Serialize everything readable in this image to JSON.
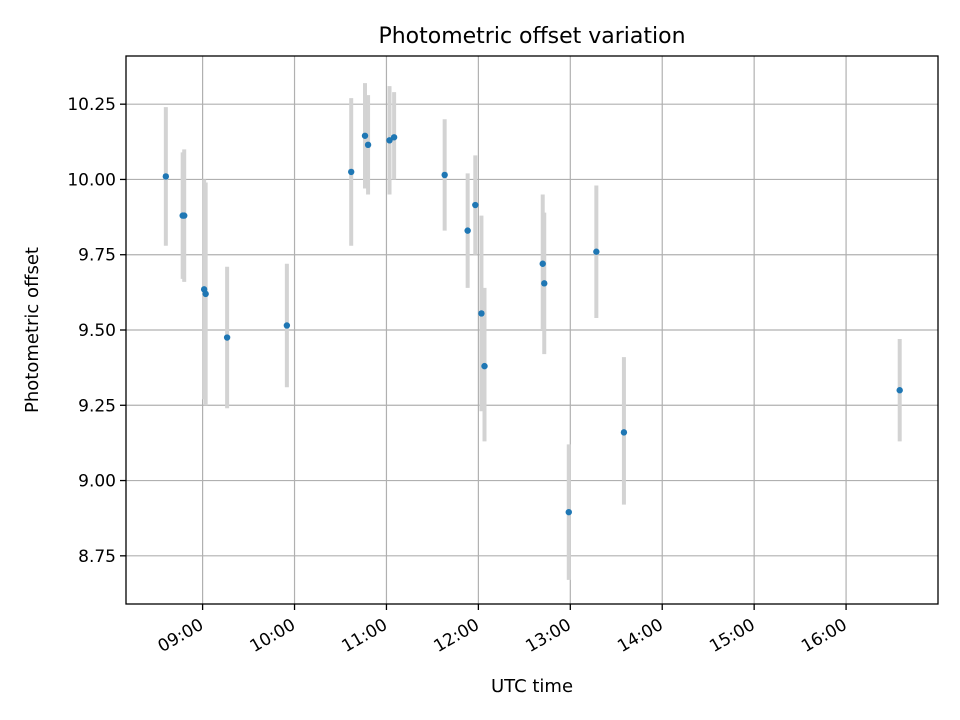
{
  "chart_data": {
    "type": "scatter",
    "title": "Photometric offset variation",
    "xlabel": "UTC time",
    "ylabel": "Photometric offset",
    "xlim": [
      "08:10",
      "17:00"
    ],
    "ylim": [
      8.59,
      10.41
    ],
    "x_ticks": [
      "09:00",
      "10:00",
      "11:00",
      "12:00",
      "13:00",
      "14:00",
      "15:00",
      "16:00"
    ],
    "y_ticks": [
      8.75,
      9.0,
      9.25,
      9.5,
      9.75,
      10.0,
      10.25
    ],
    "y_tick_labels": [
      "8.75",
      "9.00",
      "9.25",
      "9.50",
      "9.75",
      "10.00",
      "10.25"
    ],
    "grid": true,
    "marker_color": "#1f77b4",
    "errorbar_color": "#d3d3d3",
    "points": [
      {
        "x": "08:36",
        "y": 10.01,
        "err_low": 9.78,
        "err_high": 10.24
      },
      {
        "x": "08:47",
        "y": 9.88,
        "err_low": 9.67,
        "err_high": 10.09
      },
      {
        "x": "08:48",
        "y": 9.88,
        "err_low": 9.66,
        "err_high": 10.1
      },
      {
        "x": "09:01",
        "y": 9.635,
        "err_low": 9.27,
        "err_high": 10.0
      },
      {
        "x": "09:02",
        "y": 9.62,
        "err_low": 9.25,
        "err_high": 9.99
      },
      {
        "x": "09:16",
        "y": 9.475,
        "err_low": 9.24,
        "err_high": 9.71
      },
      {
        "x": "09:55",
        "y": 9.515,
        "err_low": 9.31,
        "err_high": 9.72
      },
      {
        "x": "10:37",
        "y": 10.025,
        "err_low": 9.78,
        "err_high": 10.27
      },
      {
        "x": "10:46",
        "y": 10.145,
        "err_low": 9.97,
        "err_high": 10.32
      },
      {
        "x": "10:48",
        "y": 10.115,
        "err_low": 9.95,
        "err_high": 10.28
      },
      {
        "x": "11:02",
        "y": 10.13,
        "err_low": 9.95,
        "err_high": 10.31
      },
      {
        "x": "11:05",
        "y": 10.14,
        "err_low": 10.0,
        "err_high": 10.29
      },
      {
        "x": "11:38",
        "y": 10.015,
        "err_low": 9.83,
        "err_high": 10.2
      },
      {
        "x": "11:53",
        "y": 9.83,
        "err_low": 9.64,
        "err_high": 10.02
      },
      {
        "x": "11:58",
        "y": 9.915,
        "err_low": 9.75,
        "err_high": 10.08
      },
      {
        "x": "12:02",
        "y": 9.555,
        "err_low": 9.23,
        "err_high": 9.88
      },
      {
        "x": "12:04",
        "y": 9.38,
        "err_low": 9.13,
        "err_high": 9.64
      },
      {
        "x": "12:42",
        "y": 9.72,
        "err_low": 9.5,
        "err_high": 9.95
      },
      {
        "x": "12:43",
        "y": 9.655,
        "err_low": 9.42,
        "err_high": 9.89
      },
      {
        "x": "12:59",
        "y": 8.895,
        "err_low": 8.67,
        "err_high": 9.12
      },
      {
        "x": "13:17",
        "y": 9.76,
        "err_low": 9.54,
        "err_high": 9.98
      },
      {
        "x": "13:35",
        "y": 9.16,
        "err_low": 8.92,
        "err_high": 9.41
      },
      {
        "x": "16:35",
        "y": 9.3,
        "err_low": 9.13,
        "err_high": 9.47
      }
    ]
  }
}
